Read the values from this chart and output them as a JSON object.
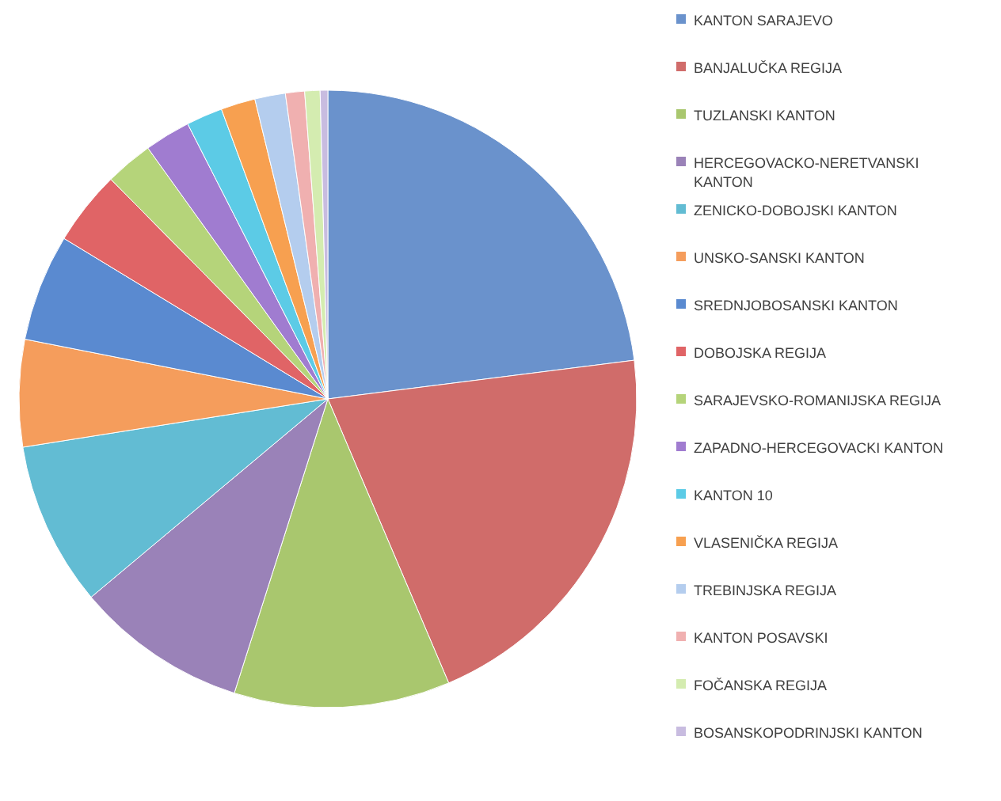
{
  "chart_data": {
    "type": "pie",
    "legend": "right",
    "categories": [
      "KANTON SARAJEVO",
      "BANJALUČKA REGIJA",
      "TUZLANSKI KANTON",
      "HERCEGOVACKO-NERETVANSKI KANTON",
      "ZENICKO-DOBOJSKI KANTON",
      "UNSKO-SANSKI KANTON",
      "SREDNJOBOSANSKI KANTON",
      "DOBOJSKA REGIJA",
      "SARAJEVSKO-ROMANIJSKA REGIJA",
      "ZAPADNO-HERCEGOVACKI KANTON",
      "KANTON 10",
      "VLASENIČKA REGIJA",
      "TREBINJSKA REGIJA",
      "KANTON POSAVSKI",
      "FOČANSKA REGIJA",
      "BOSANSKOPODRINJSKI KANTON"
    ],
    "values": [
      23.0,
      20.6,
      11.3,
      9.0,
      8.6,
      5.6,
      5.6,
      3.9,
      2.5,
      2.4,
      1.9,
      1.8,
      1.6,
      1.0,
      0.8,
      0.4
    ],
    "colors": [
      "#6a92cc",
      "#d06c6a",
      "#a9c76e",
      "#9a82b8",
      "#62bcd3",
      "#f59d5c",
      "#5a8ad0",
      "#e06466",
      "#b5d47a",
      "#a07cd0",
      "#5ccbe6",
      "#f7a050",
      "#b4cdee",
      "#f0b0b0",
      "#d4ecb0",
      "#c8bce0"
    ]
  }
}
